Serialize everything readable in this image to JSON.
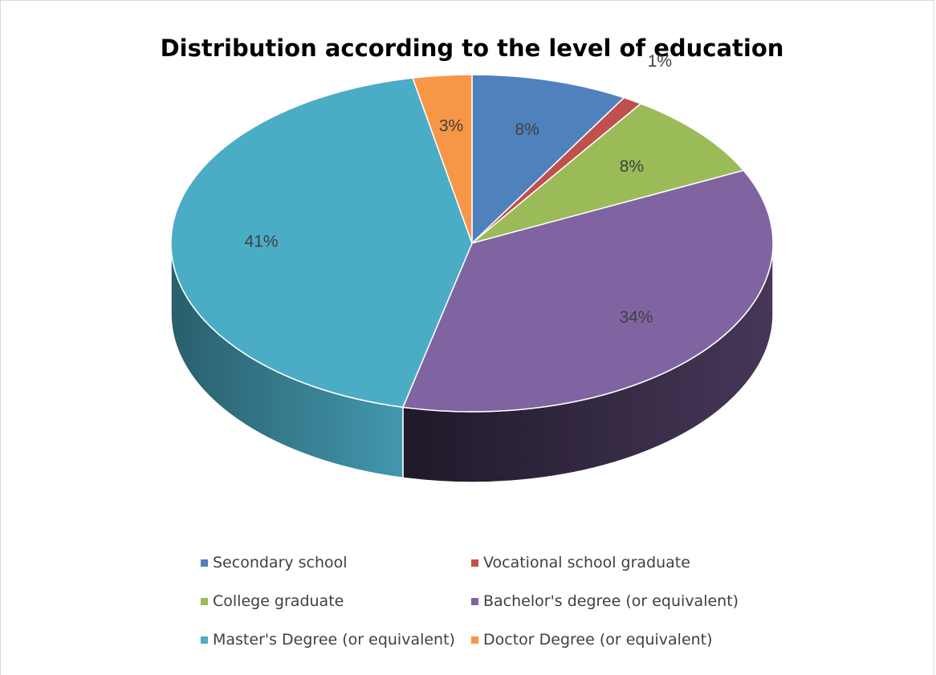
{
  "chart_data": {
    "type": "pie",
    "title": "Distribution according to the level of education",
    "categories": [
      "Secondary school",
      "Vocational school graduate",
      "College graduate",
      "Bachelor's degree (or equivalent)",
      "Master's Degree (or equivalent)",
      "Doctor Degree (or equivalent)"
    ],
    "values": [
      8,
      1,
      8,
      34,
      41,
      3
    ],
    "labels": [
      "8%",
      "1%",
      "8%",
      "34%",
      "41%",
      "3%"
    ],
    "colors": [
      "#4f81bd",
      "#c0504d",
      "#9bbb59",
      "#8064a2",
      "#4bacc6",
      "#f79646"
    ],
    "legend_position": "bottom",
    "style": "3d"
  }
}
